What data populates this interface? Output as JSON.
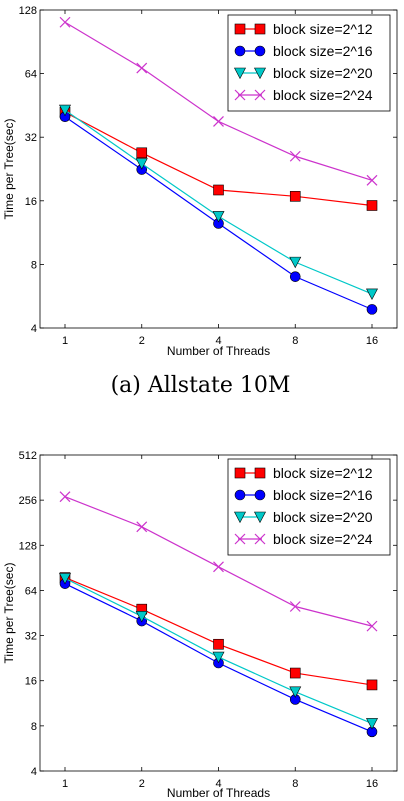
{
  "chart_data": [
    {
      "type": "line",
      "caption": "(a) Allstate 10M",
      "xlabel": "Number of Threads",
      "ylabel": "Time per Tree(sec)",
      "x": [
        1,
        2,
        4,
        8,
        16
      ],
      "x_scale": "log2",
      "y_scale": "log2",
      "ylim": [
        4,
        128
      ],
      "yticks": [
        4,
        8,
        16,
        32,
        64,
        128
      ],
      "legend_position": "top-right",
      "series": [
        {
          "name": "block size=2^12",
          "marker": "square",
          "color": "#ff0000",
          "values": [
            42,
            27,
            18,
            16.8,
            15.2
          ]
        },
        {
          "name": "block size=2^16",
          "marker": "circle",
          "color": "#0000ff",
          "values": [
            40,
            22.5,
            12.5,
            7,
            4.9
          ]
        },
        {
          "name": "block size=2^20",
          "marker": "triangle-down",
          "color": "#00c8c8",
          "values": [
            43,
            24,
            13.5,
            8.2,
            5.8
          ]
        },
        {
          "name": "block size=2^24",
          "marker": "x",
          "color": "#cc33cc",
          "values": [
            112,
            68,
            38,
            26,
            20
          ]
        }
      ]
    },
    {
      "type": "line",
      "caption": "",
      "xlabel": "Number of Threads",
      "ylabel": "Time per Tree(sec)",
      "x": [
        1,
        2,
        4,
        8,
        16
      ],
      "x_scale": "log2",
      "y_scale": "log2",
      "ylim": [
        4,
        512
      ],
      "yticks": [
        4,
        8,
        16,
        32,
        64,
        128,
        256,
        512
      ],
      "legend_position": "top-right",
      "series": [
        {
          "name": "block size=2^12",
          "marker": "square",
          "color": "#ff0000",
          "values": [
            78,
            48,
            28,
            18,
            15
          ]
        },
        {
          "name": "block size=2^16",
          "marker": "circle",
          "color": "#0000ff",
          "values": [
            71,
            40,
            21,
            12,
            7.3
          ]
        },
        {
          "name": "block size=2^20",
          "marker": "triangle-down",
          "color": "#00c8c8",
          "values": [
            77,
            43,
            23,
            13.5,
            8.3
          ]
        },
        {
          "name": "block size=2^24",
          "marker": "x",
          "color": "#cc33cc",
          "values": [
            270,
            170,
            92,
            50,
            37
          ]
        }
      ]
    }
  ]
}
